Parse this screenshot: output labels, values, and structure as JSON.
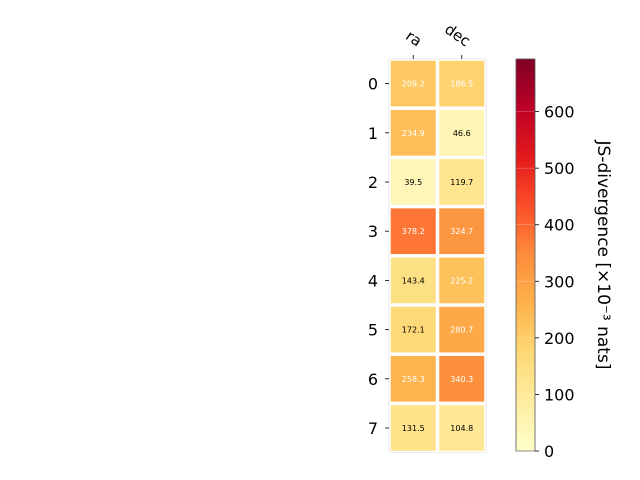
{
  "chart_data": {
    "type": "heatmap",
    "x_labels": [
      "ra",
      "dec"
    ],
    "y_labels": [
      "0",
      "1",
      "2",
      "3",
      "4",
      "5",
      "6",
      "7"
    ],
    "values": [
      [
        209.2,
        186.5
      ],
      [
        234.9,
        46.6
      ],
      [
        39.5,
        119.7
      ],
      [
        378.2,
        324.7
      ],
      [
        143.4,
        225.2
      ],
      [
        172.1,
        280.7
      ],
      [
        258.3,
        340.3
      ],
      [
        131.5,
        104.8
      ]
    ],
    "cell_labels": [
      [
        "209.2",
        "186.5"
      ],
      [
        "234.9",
        "46.6"
      ],
      [
        "39.5",
        "119.7"
      ],
      [
        "378.2",
        "324.7"
      ],
      [
        "143.4",
        "225.2"
      ],
      [
        "172.1",
        "280.7"
      ],
      [
        "258.3",
        "340.3"
      ],
      [
        "131.5",
        "104.8"
      ]
    ],
    "colorbar": {
      "label": "JS-divergence [×10⁻³ nats]",
      "range": [
        0,
        693
      ],
      "ticks": [
        "0",
        "100",
        "200",
        "300",
        "400",
        "500",
        "600"
      ],
      "tick_values": [
        0,
        100,
        200,
        300,
        400,
        500,
        600
      ],
      "colormap": "YlOrRd"
    },
    "grid": false
  }
}
